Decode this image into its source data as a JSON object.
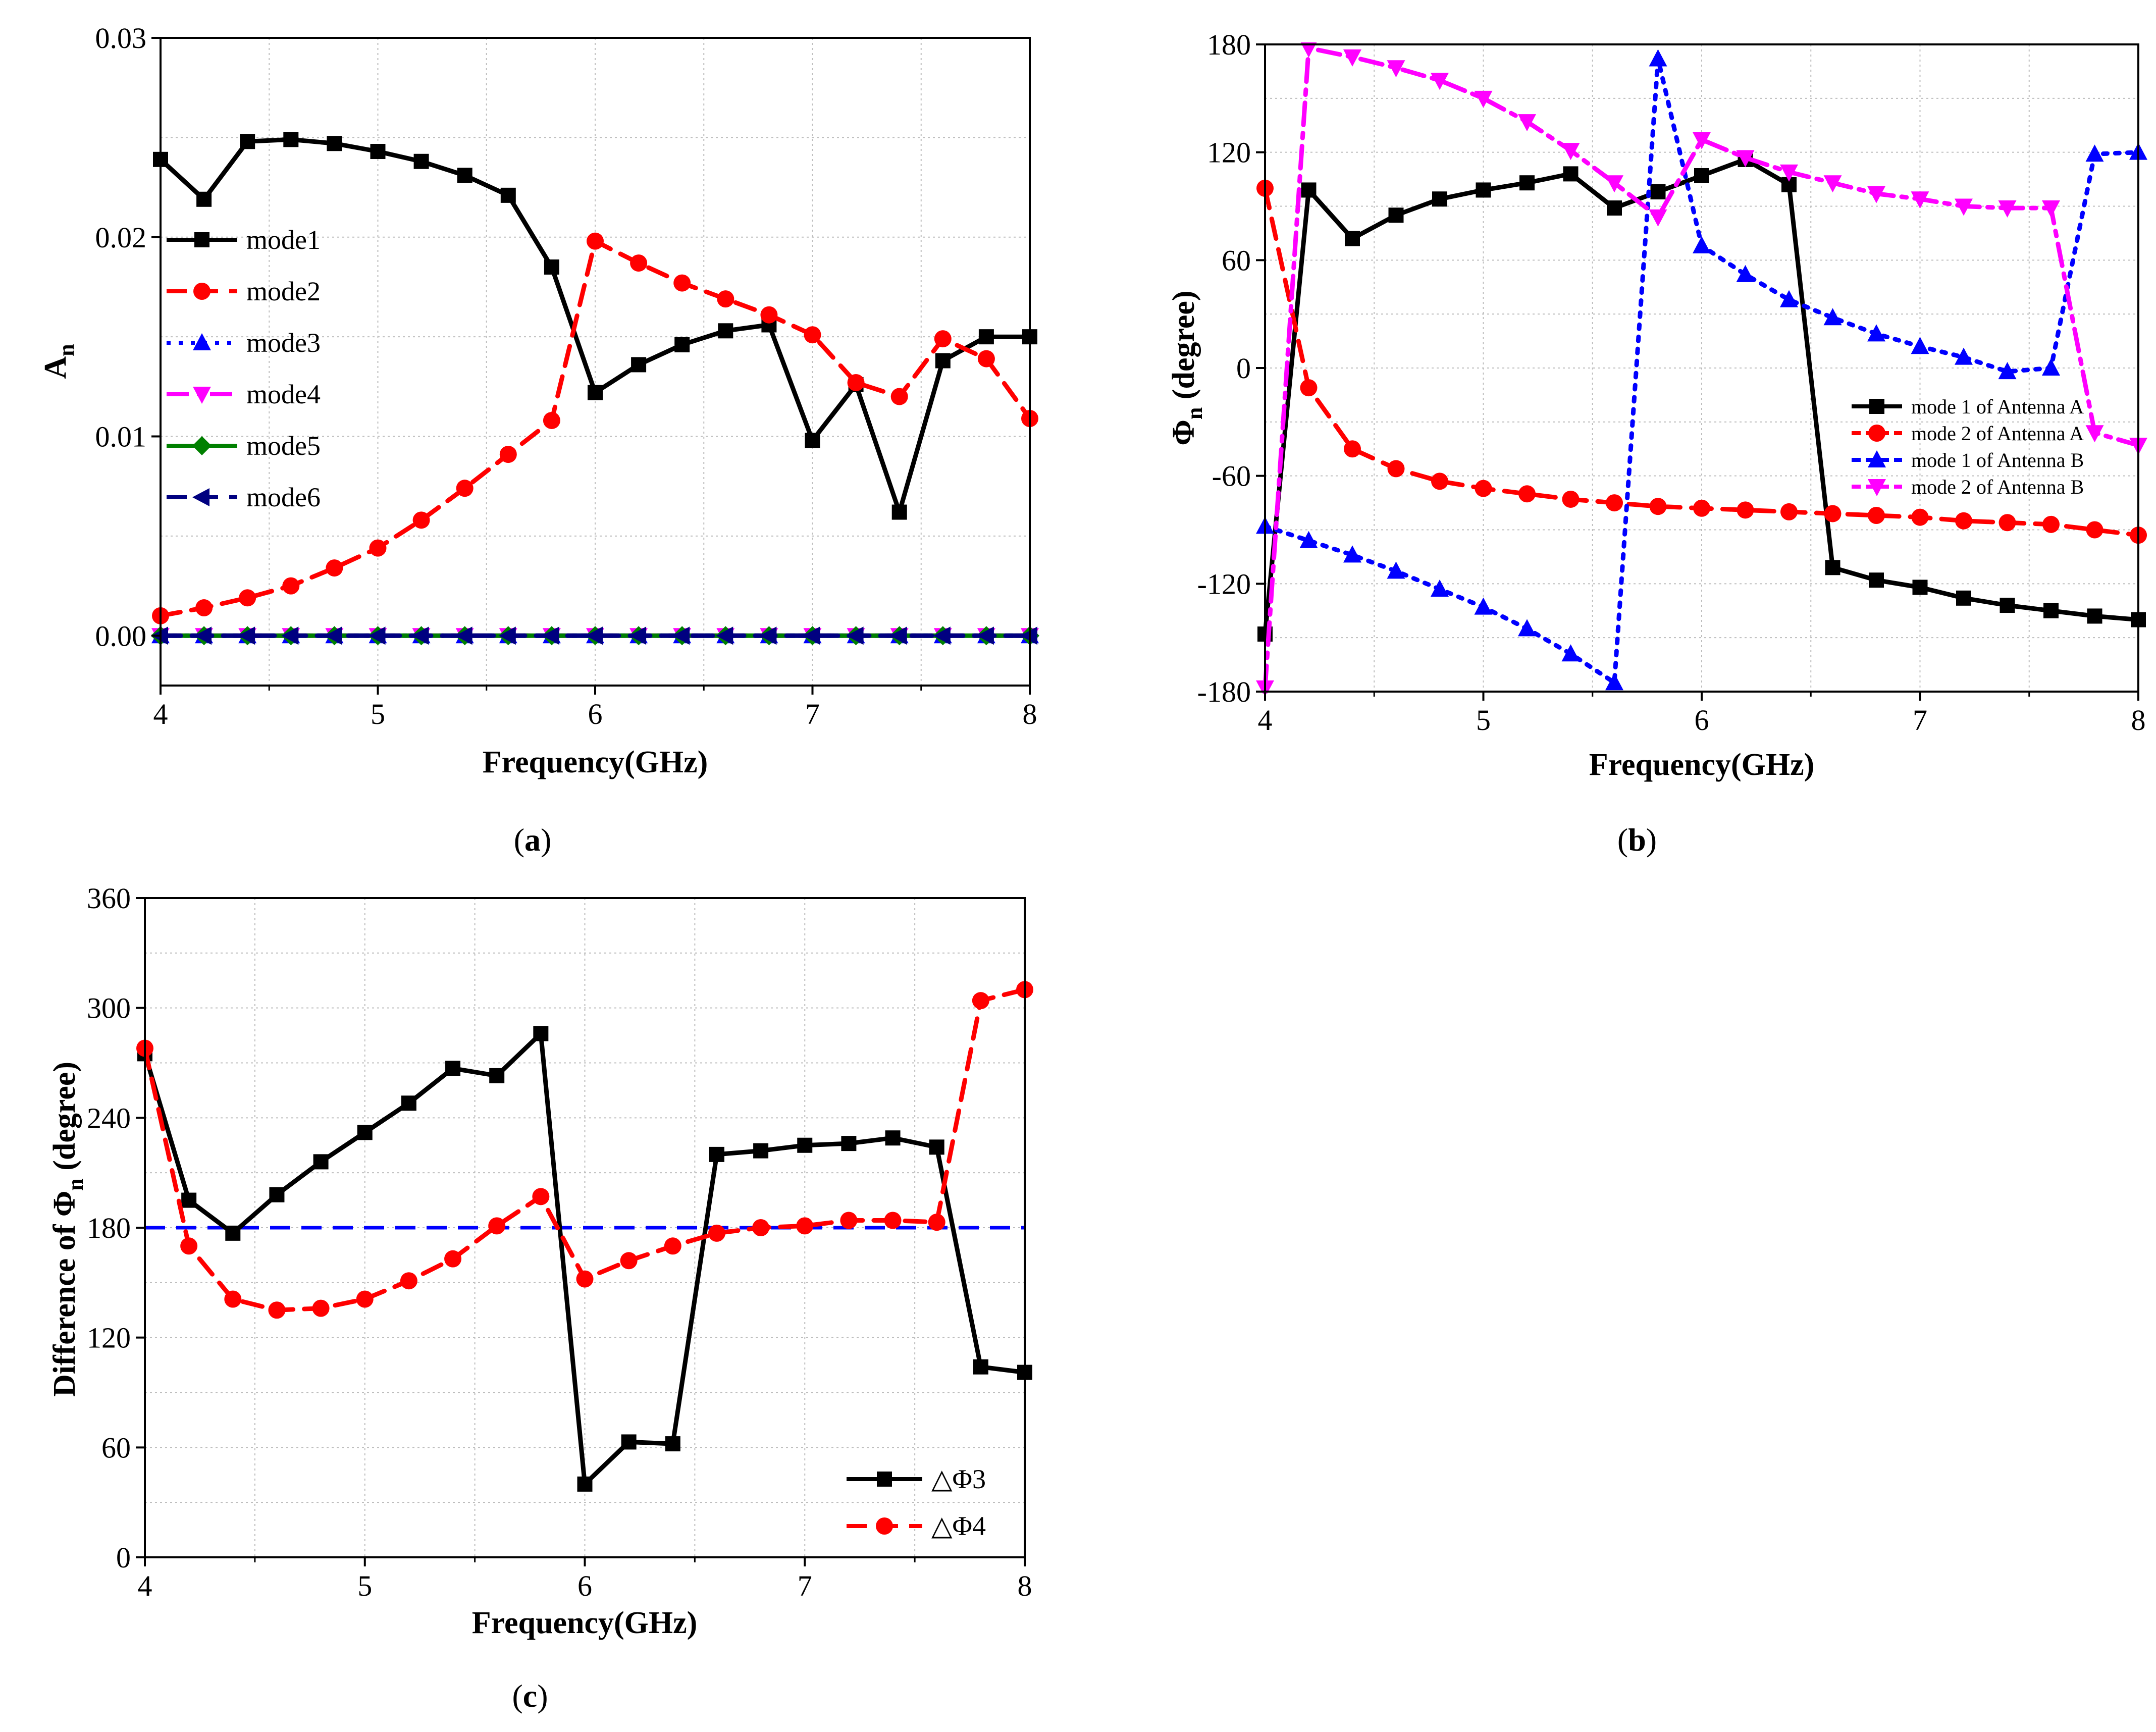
{
  "figure": {
    "panels": [
      {
        "label": "a",
        "text_open": "(",
        "text_close": ")"
      },
      {
        "label": "b",
        "text_open": "(",
        "text_close": ")"
      },
      {
        "label": "c",
        "text_open": "(",
        "text_close": ")"
      }
    ]
  },
  "chart_data": [
    {
      "type": "line",
      "panel": "a",
      "title": "",
      "xlabel": "Frequency(GHz)",
      "ylabel_main": "A",
      "ylabel_sub": "n",
      "xlim": [
        4,
        8
      ],
      "ylim": [
        -0.0025,
        0.03
      ],
      "xticks": [
        "4",
        "5",
        "6",
        "7",
        "8"
      ],
      "xtick_values": [
        4,
        5,
        6,
        7,
        8
      ],
      "yticks": [
        "0.00",
        "0.01",
        "0.02",
        "0.03"
      ],
      "ytick_values": [
        0,
        0.01,
        0.02,
        0.03
      ],
      "grid": true,
      "legend_position": "left",
      "x": [
        4.0,
        4.2,
        4.4,
        4.6,
        4.8,
        5.0,
        5.2,
        5.4,
        5.6,
        5.8,
        6.0,
        6.2,
        6.4,
        6.6,
        6.8,
        7.0,
        7.2,
        7.4,
        7.6,
        7.8,
        8.0
      ],
      "series": [
        {
          "name": "mode1",
          "color": "#000000",
          "marker": "square",
          "dash": "solid",
          "values": [
            0.0239,
            0.0219,
            0.0248,
            0.0249,
            0.0247,
            0.0243,
            0.0238,
            0.0231,
            0.0221,
            0.0185,
            0.0122,
            0.0136,
            0.0146,
            0.0153,
            0.0156,
            0.0098,
            0.0126,
            0.0062,
            0.0138,
            0.015,
            0.015
          ]
        },
        {
          "name": "mode2",
          "color": "#ff0000",
          "marker": "circle",
          "dash": "dash",
          "values": [
            0.001,
            0.0014,
            0.0019,
            0.0025,
            0.0034,
            0.0044,
            0.0058,
            0.0074,
            0.0091,
            0.0108,
            0.0198,
            0.0187,
            0.0177,
            0.0169,
            0.0161,
            0.0151,
            0.0127,
            0.012,
            0.0149,
            0.0139,
            0.0109
          ]
        },
        {
          "name": "mode3",
          "color": "#0000ff",
          "marker": "triangle-up",
          "dash": "dot",
          "values": [
            0,
            0,
            0,
            0,
            0,
            0,
            0,
            0,
            0,
            0,
            0,
            0,
            0,
            0,
            0,
            0,
            0,
            0,
            0,
            0,
            0
          ]
        },
        {
          "name": "mode4",
          "color": "#ff00ff",
          "marker": "triangle-down",
          "dash": "dashdot",
          "values": [
            0,
            0,
            0,
            0,
            0,
            0,
            0,
            0,
            0,
            0,
            0,
            0,
            0,
            0,
            0,
            0,
            0,
            0,
            0,
            0,
            0
          ]
        },
        {
          "name": "mode5",
          "color": "#008000",
          "marker": "diamond",
          "dash": "solid",
          "values": [
            0,
            0,
            0,
            0,
            0,
            0,
            0,
            0,
            0,
            0,
            0,
            0,
            0,
            0,
            0,
            0,
            0,
            0,
            0,
            0,
            0
          ]
        },
        {
          "name": "mode6",
          "color": "#000080",
          "marker": "triangle-left",
          "dash": "dash",
          "values": [
            0,
            0,
            0,
            0,
            0,
            0,
            0,
            0,
            0,
            0,
            0,
            0,
            0,
            0,
            0,
            0,
            0,
            0,
            0,
            0,
            0
          ]
        }
      ]
    },
    {
      "type": "line",
      "panel": "b",
      "title": "",
      "xlabel": "Frequency(GHz)",
      "ylabel_main": "Φ",
      "ylabel_sub": "n",
      "ylabel_rest": " (degree)",
      "xlim": [
        4,
        8
      ],
      "ylim": [
        -180,
        180
      ],
      "xticks": [
        "4",
        "5",
        "6",
        "7",
        "8"
      ],
      "xtick_values": [
        4,
        5,
        6,
        7,
        8
      ],
      "yticks": [
        "-180",
        "-120",
        "-60",
        "0",
        "60",
        "120",
        "180"
      ],
      "ytick_values": [
        -180,
        -120,
        -60,
        0,
        60,
        120,
        180
      ],
      "grid": true,
      "legend_position": "right",
      "x": [
        4.0,
        4.2,
        4.4,
        4.6,
        4.8,
        5.0,
        5.2,
        5.4,
        5.6,
        5.8,
        6.0,
        6.2,
        6.4,
        6.6,
        6.8,
        7.0,
        7.2,
        7.4,
        7.6,
        7.8,
        8.0
      ],
      "series": [
        {
          "name": "mode 1 of Antenna A",
          "color": "#000000",
          "marker": "square",
          "dash": "solid",
          "values": [
            -148,
            99,
            72,
            85,
            94,
            99,
            103,
            108,
            89,
            98,
            107,
            116,
            102,
            -111,
            -118,
            -122,
            -128,
            -132,
            -135,
            -138,
            -140
          ]
        },
        {
          "name": "mode 2 of Antenna A",
          "color": "#ff0000",
          "marker": "circle",
          "dash": "dash",
          "values": [
            100,
            -11,
            -45,
            -56,
            -63,
            -67,
            -70,
            -73,
            -75,
            -77,
            -78,
            -79,
            -80,
            -81,
            -82,
            -83,
            -85,
            -86,
            -87,
            -90,
            -93
          ]
        },
        {
          "name": "mode 1 of Antenna B",
          "color": "#0000ff",
          "marker": "triangle-up",
          "dash": "dot",
          "values": [
            -88,
            -96,
            -104,
            -113,
            -123,
            -133,
            -145,
            -159,
            -175,
            172,
            68,
            52,
            38,
            28,
            19,
            12,
            6,
            -2,
            0,
            119,
            120
          ]
        },
        {
          "name": "mode 2 of Antenna B",
          "color": "#ff00ff",
          "marker": "triangle-down",
          "dash": "dashdot",
          "values": [
            -178,
            178,
            173,
            167,
            160,
            150,
            137,
            121,
            103,
            84,
            127,
            117,
            109,
            103,
            97,
            94,
            90,
            89,
            89,
            -36,
            -43
          ]
        }
      ]
    },
    {
      "type": "line",
      "panel": "c",
      "title": "",
      "xlabel": "Frequency(GHz)",
      "ylabel_pre": "Difference of Φ",
      "ylabel_sub": "n",
      "ylabel_rest": " (degree)",
      "xlim": [
        4,
        8
      ],
      "ylim": [
        0,
        360
      ],
      "xticks": [
        "4",
        "5",
        "6",
        "7",
        "8"
      ],
      "xtick_values": [
        4,
        5,
        6,
        7,
        8
      ],
      "yticks": [
        "0",
        "60",
        "120",
        "180",
        "240",
        "300",
        "360"
      ],
      "ytick_values": [
        0,
        60,
        120,
        180,
        240,
        300,
        360
      ],
      "grid": true,
      "legend_position": "bottom-right",
      "reference_line": {
        "y": 180,
        "color": "#0000ff",
        "dash": "dash"
      },
      "x": [
        4.0,
        4.2,
        4.4,
        4.6,
        4.8,
        5.0,
        5.2,
        5.4,
        5.6,
        5.8,
        6.0,
        6.2,
        6.4,
        6.6,
        6.8,
        7.0,
        7.2,
        7.4,
        7.6,
        7.8,
        8.0
      ],
      "series": [
        {
          "name": "△Φ3",
          "color": "#000000",
          "marker": "square",
          "dash": "solid",
          "values": [
            275,
            195,
            177,
            198,
            216,
            232,
            248,
            267,
            263,
            286,
            40,
            63,
            62,
            220,
            222,
            225,
            226,
            229,
            224,
            104,
            101
          ]
        },
        {
          "name": "△Φ4",
          "color": "#ff0000",
          "marker": "circle",
          "dash": "dash",
          "values": [
            278,
            170,
            141,
            135,
            136,
            141,
            151,
            163,
            181,
            197,
            152,
            162,
            170,
            177,
            180,
            181,
            184,
            184,
            183,
            304,
            310
          ]
        }
      ]
    }
  ]
}
